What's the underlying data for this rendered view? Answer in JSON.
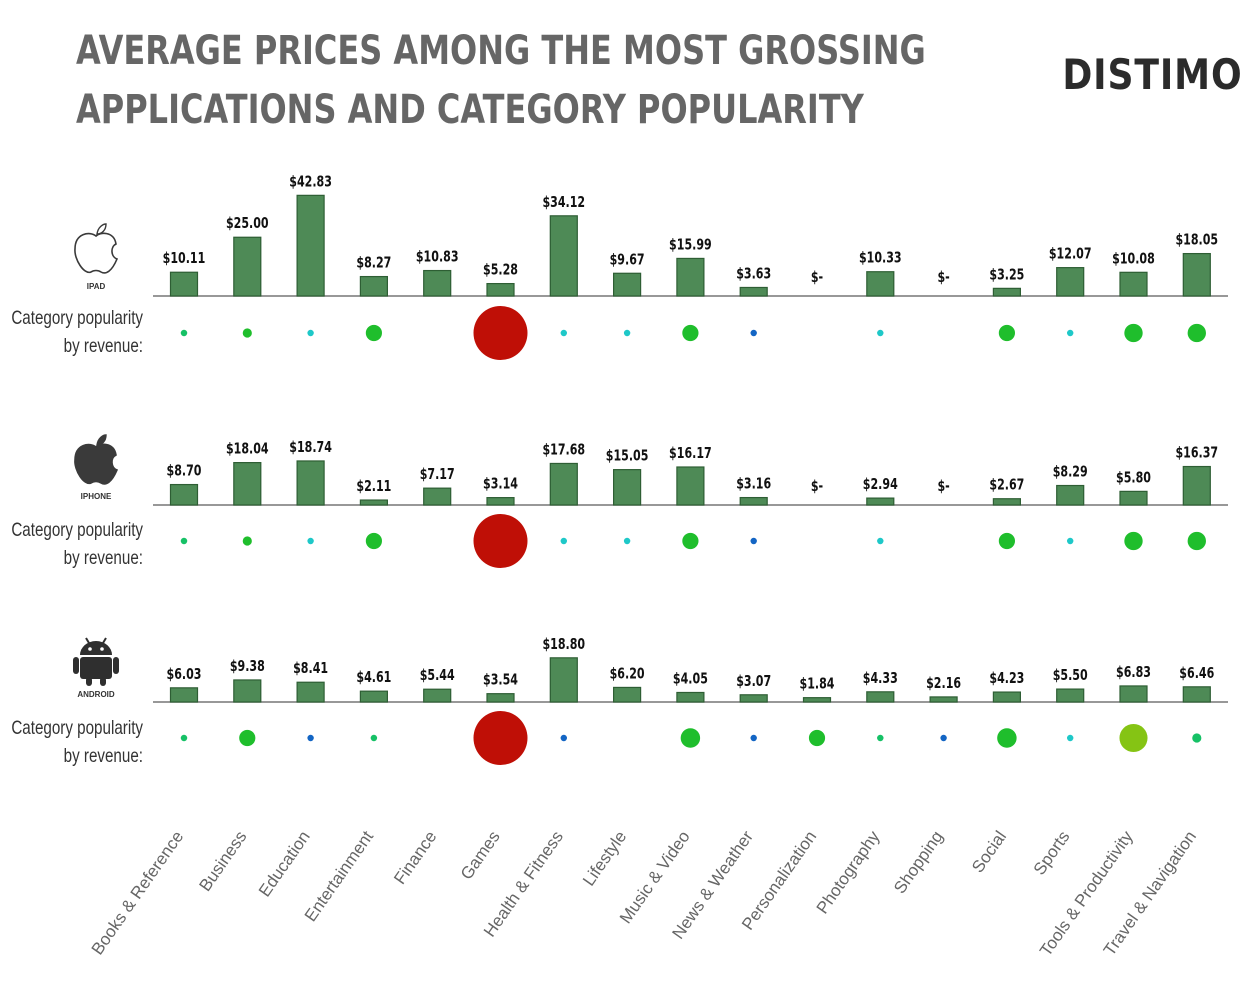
{
  "title_lines": [
    "AVERAGE PRICES AMONG THE MOST GROSSING",
    "APPLICATIONS AND CATEGORY POPULARITY"
  ],
  "brand": "DISTIMO",
  "popularity_label": [
    "Category popularity",
    "by revenue:"
  ],
  "colors": {
    "bar": "#4e8a56",
    "axis": "#777777",
    "games": "#bf0f06",
    "high": "#1fbe2c",
    "mid": "#16c166",
    "low": "#1ec8c8",
    "min": "#1365c4",
    "lime": "#85c414"
  },
  "chart_data": {
    "type": "bar",
    "categories": [
      "Books & Reference",
      "Business",
      "Education",
      "Entertainment",
      "Finance",
      "Games",
      "Health & Fitness",
      "Lifestyle",
      "Music & Video",
      "News & Weather",
      "Personalization",
      "Photography",
      "Shopping",
      "Social",
      "Sports",
      "Tools & Productivity",
      "Travel & Navigation"
    ],
    "series": [
      {
        "name": "IPAD",
        "icon": "apple-icon",
        "values": [
          10.11,
          25.0,
          42.83,
          8.27,
          10.83,
          5.28,
          34.12,
          9.67,
          15.99,
          3.63,
          null,
          10.33,
          null,
          3.25,
          12.07,
          10.08,
          18.05
        ],
        "labels": [
          "$10.11",
          "$25.00",
          "$42.83",
          "$8.27",
          "$10.83",
          "$5.28",
          "$34.12",
          "$9.67",
          "$15.99",
          "$3.63",
          "$-",
          "$10.33",
          "$-",
          "$3.25",
          "$12.07",
          "$10.08",
          "$18.05"
        ],
        "popularity": [
          {
            "size": 0.12,
            "color": "mid"
          },
          {
            "size": 0.17,
            "color": "high"
          },
          {
            "size": 0.08,
            "color": "low"
          },
          {
            "size": 0.3,
            "color": "high"
          },
          null,
          {
            "size": 1.0,
            "color": "games"
          },
          {
            "size": 0.08,
            "color": "low"
          },
          {
            "size": 0.08,
            "color": "low"
          },
          {
            "size": 0.3,
            "color": "high"
          },
          {
            "size": 0.08,
            "color": "min"
          },
          null,
          {
            "size": 0.08,
            "color": "low"
          },
          null,
          {
            "size": 0.3,
            "color": "high"
          },
          {
            "size": 0.08,
            "color": "low"
          },
          {
            "size": 0.34,
            "color": "high"
          },
          {
            "size": 0.34,
            "color": "high"
          }
        ]
      },
      {
        "name": "IPHONE",
        "icon": "apple-icon",
        "values": [
          8.7,
          18.04,
          18.74,
          2.11,
          7.17,
          3.14,
          17.68,
          15.05,
          16.17,
          3.16,
          null,
          2.94,
          null,
          2.67,
          8.29,
          5.8,
          16.37
        ],
        "labels": [
          "$8.70",
          "$18.04",
          "$18.74",
          "$2.11",
          "$7.17",
          "$3.14",
          "$17.68",
          "$15.05",
          "$16.17",
          "$3.16",
          "$-",
          "$2.94",
          "$-",
          "$2.67",
          "$8.29",
          "$5.80",
          "$16.37"
        ],
        "popularity": [
          {
            "size": 0.12,
            "color": "mid"
          },
          {
            "size": 0.17,
            "color": "high"
          },
          {
            "size": 0.08,
            "color": "low"
          },
          {
            "size": 0.3,
            "color": "high"
          },
          null,
          {
            "size": 1.0,
            "color": "games"
          },
          {
            "size": 0.08,
            "color": "low"
          },
          {
            "size": 0.08,
            "color": "low"
          },
          {
            "size": 0.3,
            "color": "high"
          },
          {
            "size": 0.08,
            "color": "min"
          },
          null,
          {
            "size": 0.08,
            "color": "low"
          },
          null,
          {
            "size": 0.3,
            "color": "high"
          },
          {
            "size": 0.08,
            "color": "low"
          },
          {
            "size": 0.34,
            "color": "high"
          },
          {
            "size": 0.34,
            "color": "high"
          }
        ]
      },
      {
        "name": "ANDROID",
        "icon": "android-icon",
        "values": [
          6.03,
          9.38,
          8.41,
          4.61,
          5.44,
          3.54,
          18.8,
          6.2,
          4.05,
          3.07,
          1.84,
          4.33,
          2.16,
          4.23,
          5.5,
          6.83,
          6.46
        ],
        "labels": [
          "$6.03",
          "$9.38",
          "$8.41",
          "$4.61",
          "$5.44",
          "$3.54",
          "$18.80",
          "$6.20",
          "$4.05",
          "$3.07",
          "$1.84",
          "$4.33",
          "$2.16",
          "$4.23",
          "$5.50",
          "$6.83",
          "$6.46"
        ],
        "popularity": [
          {
            "size": 0.12,
            "color": "mid"
          },
          {
            "size": 0.3,
            "color": "high"
          },
          {
            "size": 0.08,
            "color": "min"
          },
          {
            "size": 0.12,
            "color": "mid"
          },
          null,
          {
            "size": 1.0,
            "color": "games"
          },
          {
            "size": 0.08,
            "color": "min"
          },
          null,
          {
            "size": 0.36,
            "color": "high"
          },
          {
            "size": 0.08,
            "color": "min"
          },
          {
            "size": 0.3,
            "color": "high"
          },
          {
            "size": 0.12,
            "color": "mid"
          },
          {
            "size": 0.08,
            "color": "min"
          },
          {
            "size": 0.36,
            "color": "high"
          },
          {
            "size": 0.08,
            "color": "low"
          },
          {
            "size": 0.52,
            "color": "lime"
          },
          {
            "size": 0.17,
            "color": "mid"
          }
        ]
      }
    ],
    "ylim": [
      0,
      45
    ]
  }
}
